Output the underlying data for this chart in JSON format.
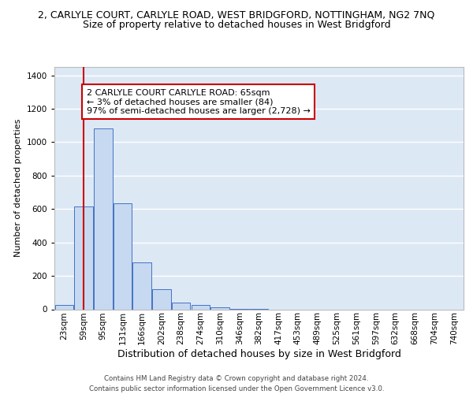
{
  "title_line1": "2, CARLYLE COURT, CARLYLE ROAD, WEST BRIDGFORD, NOTTINGHAM, NG2 7NQ",
  "title_line2": "Size of property relative to detached houses in West Bridgford",
  "xlabel": "Distribution of detached houses by size in West Bridgford",
  "ylabel": "Number of detached properties",
  "categories": [
    "23sqm",
    "59sqm",
    "95sqm",
    "131sqm",
    "166sqm",
    "202sqm",
    "238sqm",
    "274sqm",
    "310sqm",
    "346sqm",
    "382sqm",
    "417sqm",
    "453sqm",
    "489sqm",
    "525sqm",
    "561sqm",
    "597sqm",
    "632sqm",
    "668sqm",
    "704sqm",
    "740sqm"
  ],
  "values": [
    28,
    615,
    1080,
    635,
    280,
    120,
    40,
    25,
    10,
    2,
    1,
    0,
    0,
    0,
    0,
    0,
    0,
    0,
    0,
    0,
    0
  ],
  "bar_color": "#c6d9f0",
  "bar_edge_color": "#4472c4",
  "vline_x": 1,
  "vline_color": "#cc0000",
  "annotation_text": "2 CARLYLE COURT CARLYLE ROAD: 65sqm\n← 3% of detached houses are smaller (84)\n97% of semi-detached houses are larger (2,728) →",
  "ylim": [
    0,
    1450
  ],
  "yticks": [
    0,
    200,
    400,
    600,
    800,
    1000,
    1200,
    1400
  ],
  "background_color": "#ffffff",
  "plot_bg_color": "#dde8f5",
  "grid_color": "#ffffff",
  "footer_line1": "Contains HM Land Registry data © Crown copyright and database right 2024.",
  "footer_line2": "Contains public sector information licensed under the Open Government Licence v3.0.",
  "title_fontsize": 9,
  "subtitle_fontsize": 9,
  "xlabel_fontsize": 9,
  "ylabel_fontsize": 8,
  "tick_fontsize": 7.5,
  "annotation_fontsize": 8
}
